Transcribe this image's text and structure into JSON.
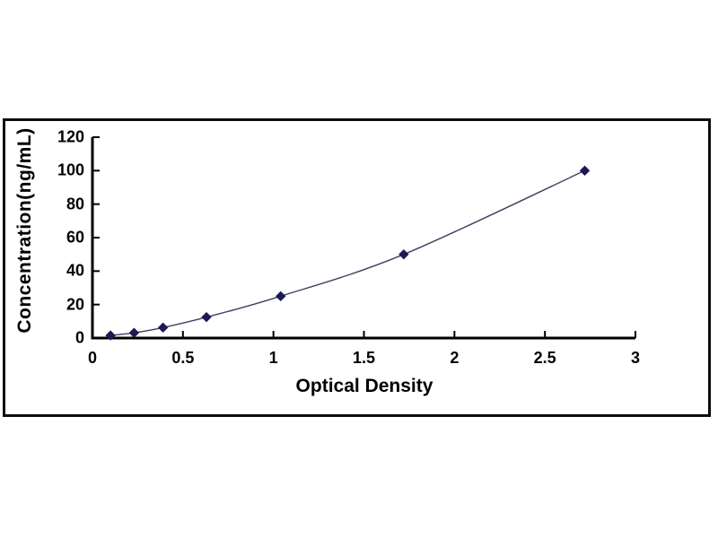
{
  "chart_data": {
    "type": "line",
    "title": "",
    "xlabel": "Optical Density",
    "ylabel": "Concentration(ng/mL)",
    "x": [
      0.1,
      0.23,
      0.39,
      0.63,
      1.04,
      1.72,
      2.72
    ],
    "y": [
      1.56,
      3.12,
      6.25,
      12.5,
      25,
      50,
      100
    ],
    "xlim": [
      0,
      3
    ],
    "ylim": [
      0,
      120
    ],
    "x_ticks": [
      0,
      0.5,
      1,
      1.5,
      2,
      2.5,
      3
    ],
    "y_ticks": [
      0,
      20,
      40,
      60,
      80,
      100,
      120
    ],
    "x_tick_labels": [
      "0",
      "0.5",
      "1",
      "1.5",
      "2",
      "2.5",
      "3"
    ],
    "y_tick_labels": [
      "0",
      "20",
      "40",
      "60",
      "80",
      "100",
      "120"
    ],
    "grid": false,
    "legend": false,
    "marker_shape": "diamond",
    "curve_style": "smooth",
    "colors": {
      "line": "#3f3f63",
      "marker": "#1c1a52",
      "axis": "#000000",
      "text": "#000000",
      "frame": "#0d0d0d",
      "background": "#ffffff"
    }
  }
}
